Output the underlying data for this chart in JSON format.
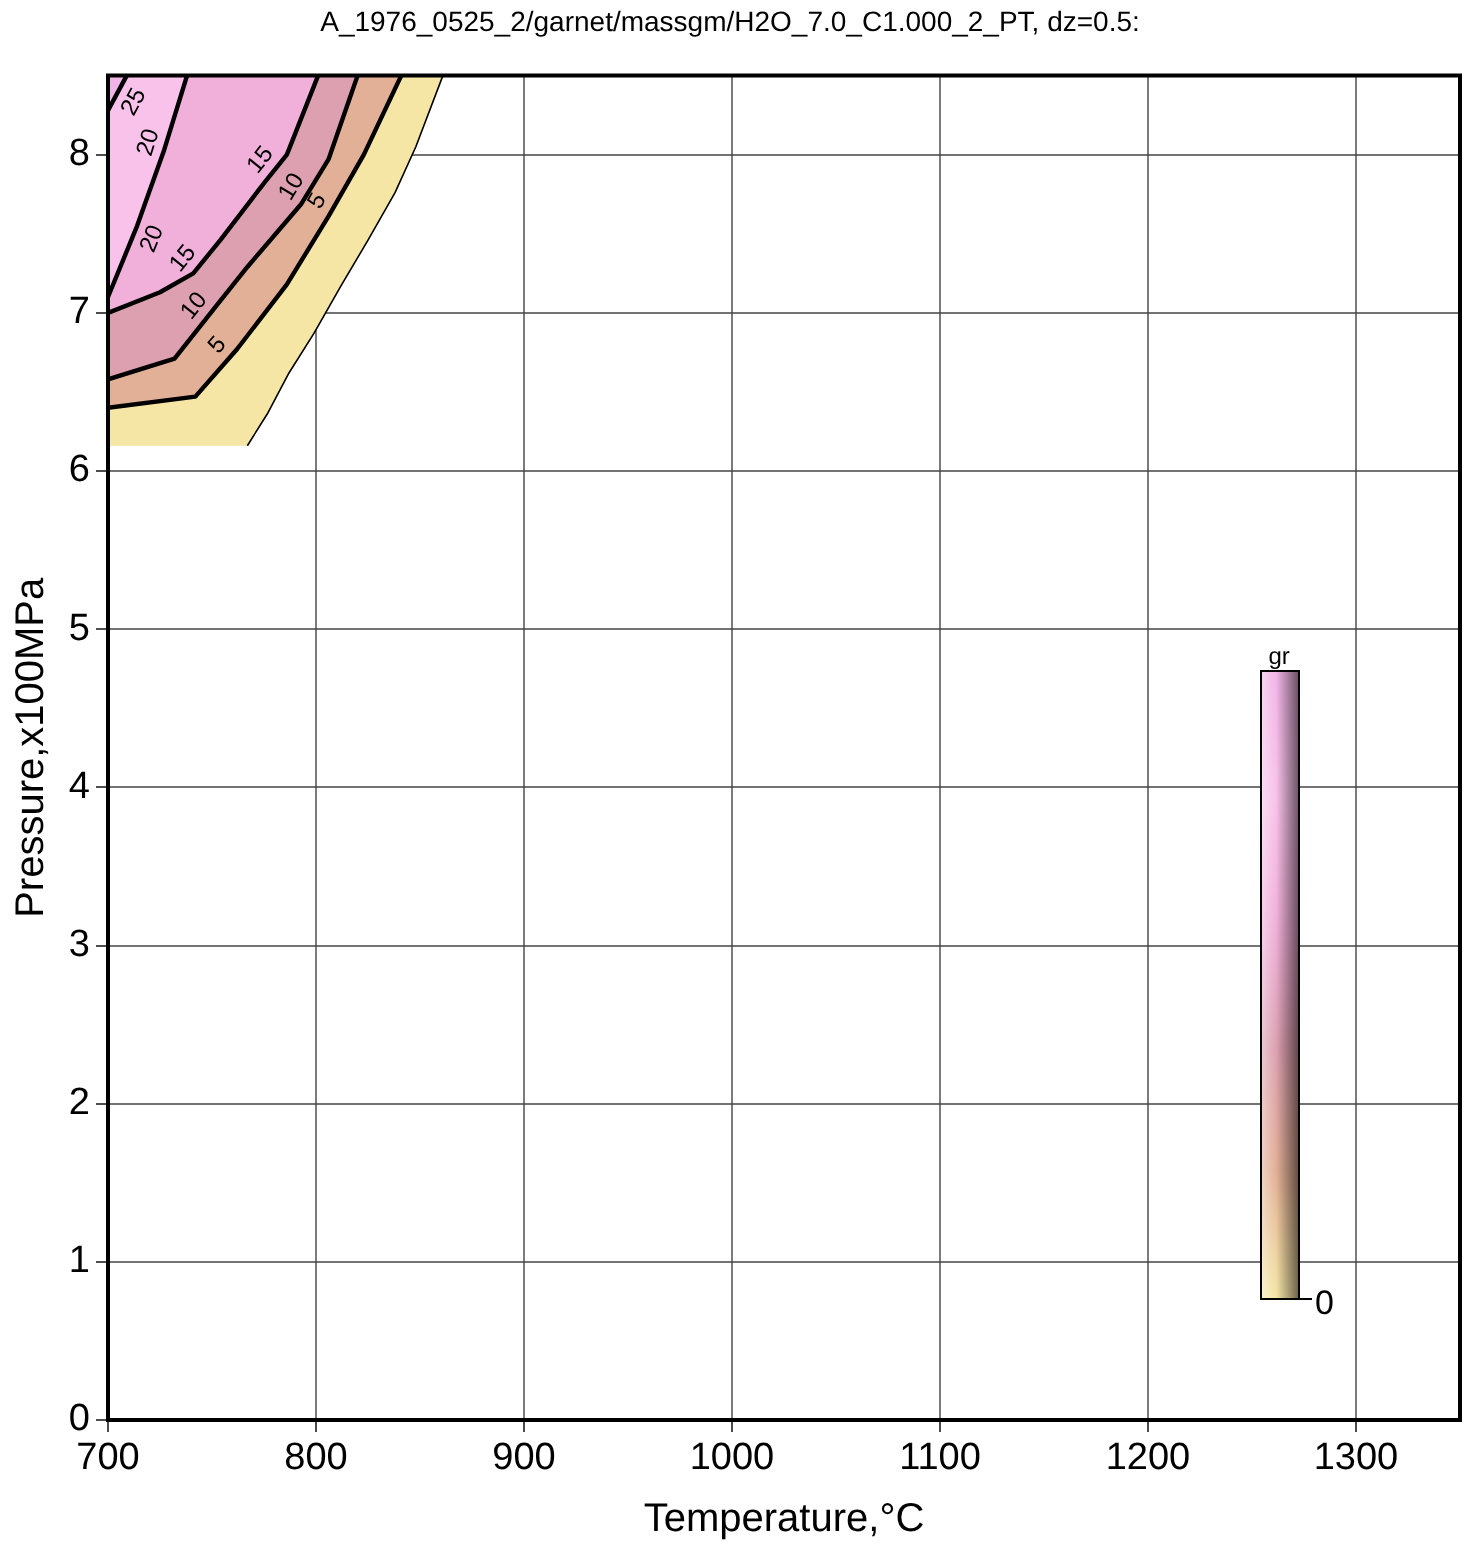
{
  "chart_data": {
    "type": "area",
    "orientation": "horizontal",
    "title": "A_1976_0525_2/garnet/massgm/H2O_7.0_C1.000_2_PT, dz=0.5:",
    "xlabel": "Temperature,°C",
    "ylabel": "Pressure,x100MPa",
    "clabel": "gr",
    "annotations": [
      "0"
    ],
    "xlim": [
      700,
      1350
    ],
    "ylim": [
      0,
      8.5
    ],
    "xticks": [
      700,
      800,
      900,
      1000,
      1100,
      1200,
      1300
    ],
    "yticks": [
      0,
      1,
      2,
      3,
      4,
      5,
      6,
      7,
      8
    ],
    "grid": true,
    "legend": false,
    "series": [
      {
        "color": "#f5e6a6",
        "x": [
          6.16,
          6.37,
          6.62,
          6.87,
          7.17,
          7.46,
          7.76,
          8.05,
          8.5
        ],
        "values": [
          767,
          777,
          787,
          799,
          812,
          825,
          838,
          848,
          861
        ]
      },
      {
        "name": "5",
        "color": "#e2b096",
        "x": [
          6.4,
          6.47,
          6.77,
          7.18,
          7.61,
          8.0,
          8.5
        ],
        "values": [
          700,
          742,
          762,
          786,
          806,
          823,
          841
        ]
      },
      {
        "name": "10",
        "color": "#dca0b0",
        "x": [
          6.58,
          6.71,
          7.06,
          7.29,
          7.69,
          7.97,
          8.5
        ],
        "values": [
          700,
          732,
          753,
          767,
          793,
          806,
          820
        ]
      },
      {
        "name": "15",
        "color": "#f0b0da",
        "x": [
          7.0,
          7.13,
          7.25,
          7.46,
          7.82,
          8.0,
          8.5
        ],
        "values": [
          700,
          725,
          741,
          754,
          775,
          786,
          801
        ]
      },
      {
        "name": "20",
        "color": "#f8c2ea",
        "x": [
          7.1,
          7.55,
          8.03,
          8.5
        ],
        "values": [
          700,
          714,
          727,
          738
        ]
      },
      {
        "name": "25",
        "color": "#f0b4e6",
        "x": [
          8.28,
          8.5
        ],
        "values": [
          700,
          709
        ]
      }
    ]
  }
}
